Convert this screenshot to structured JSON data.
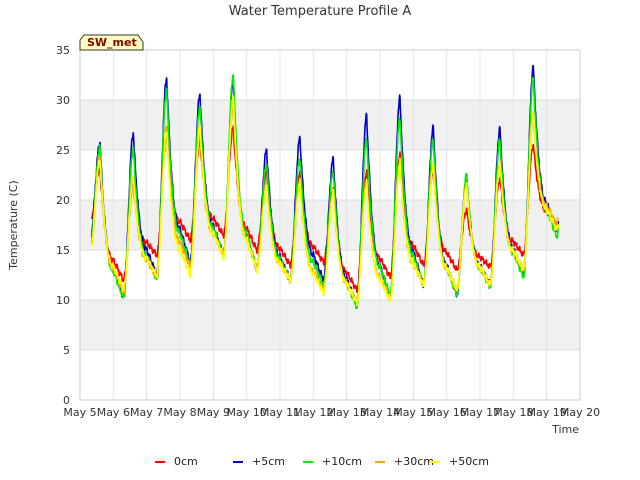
{
  "chart_data": {
    "type": "line",
    "title": "Water Temperature Profile A",
    "xlabel": "Time",
    "ylabel": "Temperature (C)",
    "site_label": "SW_met",
    "ylim": [
      0,
      35
    ],
    "xlim": [
      0,
      15
    ],
    "yticks": [
      0,
      5,
      10,
      15,
      20,
      25,
      30,
      35
    ],
    "xtick_labels": [
      "May 5",
      "May 6",
      "May 7",
      "May 8",
      "May 9",
      "May 10",
      "May 11",
      "May 12",
      "May 13",
      "May 14",
      "May 15",
      "May 16",
      "May 17",
      "May 18",
      "May 19",
      "May 20"
    ],
    "grid": true,
    "band_fill": "#f0f0f0",
    "legend_position": "bottom-center",
    "series": [
      {
        "name": "0cm",
        "color": "#ff0000",
        "peaks": [
          23.0,
          21.5,
          26.3,
          25.8,
          27.2,
          22.8,
          22.6,
          20.9,
          22.7,
          24.5,
          22.9,
          19.0,
          22.1,
          25.5
        ],
        "troughs": [
          17.8,
          12.0,
          14.5,
          16.0,
          16.5,
          15.0,
          13.5,
          13.8,
          11.0,
          12.3,
          13.5,
          13.0,
          13.3,
          14.5,
          17.5
        ]
      },
      {
        "name": "+5cm",
        "color": "#0000cc",
        "peaks": [
          25.7,
          26.7,
          32.2,
          30.6,
          31.9,
          25.0,
          26.2,
          24.1,
          28.4,
          30.2,
          27.2,
          22.3,
          27.1,
          33.3
        ],
        "troughs": [
          15.9,
          10.3,
          12.5,
          13.8,
          14.5,
          13.0,
          12.0,
          12.0,
          9.5,
          10.2,
          11.5,
          10.5,
          11.5,
          12.5,
          16.8
        ]
      },
      {
        "name": "+10cm",
        "color": "#00ee00",
        "peaks": [
          25.3,
          25.2,
          31.1,
          29.4,
          32.6,
          23.7,
          24.2,
          22.9,
          26.2,
          28.2,
          26.0,
          22.5,
          26.0,
          32.2
        ],
        "troughs": [
          15.0,
          10.2,
          12.0,
          13.5,
          14.5,
          13.2,
          12.0,
          11.5,
          9.3,
          10.5,
          11.5,
          10.5,
          11.3,
          12.3,
          16.3
        ]
      },
      {
        "name": "+30cm",
        "color": "#ffa500",
        "peaks": [
          24.2,
          22.0,
          27.3,
          26.5,
          29.5,
          21.5,
          21.7,
          20.8,
          22.0,
          23.8,
          23.7,
          21.5,
          23.6,
          28.5
        ],
        "troughs": [
          14.5,
          10.8,
          12.3,
          13.3,
          14.5,
          13.2,
          12.0,
          11.0,
          9.8,
          10.2,
          11.5,
          11.0,
          11.5,
          13.0,
          17.5
        ]
      },
      {
        "name": "+50cm",
        "color": "#ffff00",
        "peaks": [
          24.0,
          22.3,
          26.8,
          27.4,
          30.2,
          21.2,
          21.8,
          20.7,
          21.7,
          23.8,
          23.4,
          21.5,
          23.7,
          28.7
        ],
        "troughs": [
          14.8,
          11.0,
          12.4,
          12.5,
          14.3,
          13.0,
          12.0,
          10.7,
          9.7,
          10.0,
          11.5,
          11.0,
          11.5,
          13.0,
          17.0
        ]
      }
    ]
  }
}
